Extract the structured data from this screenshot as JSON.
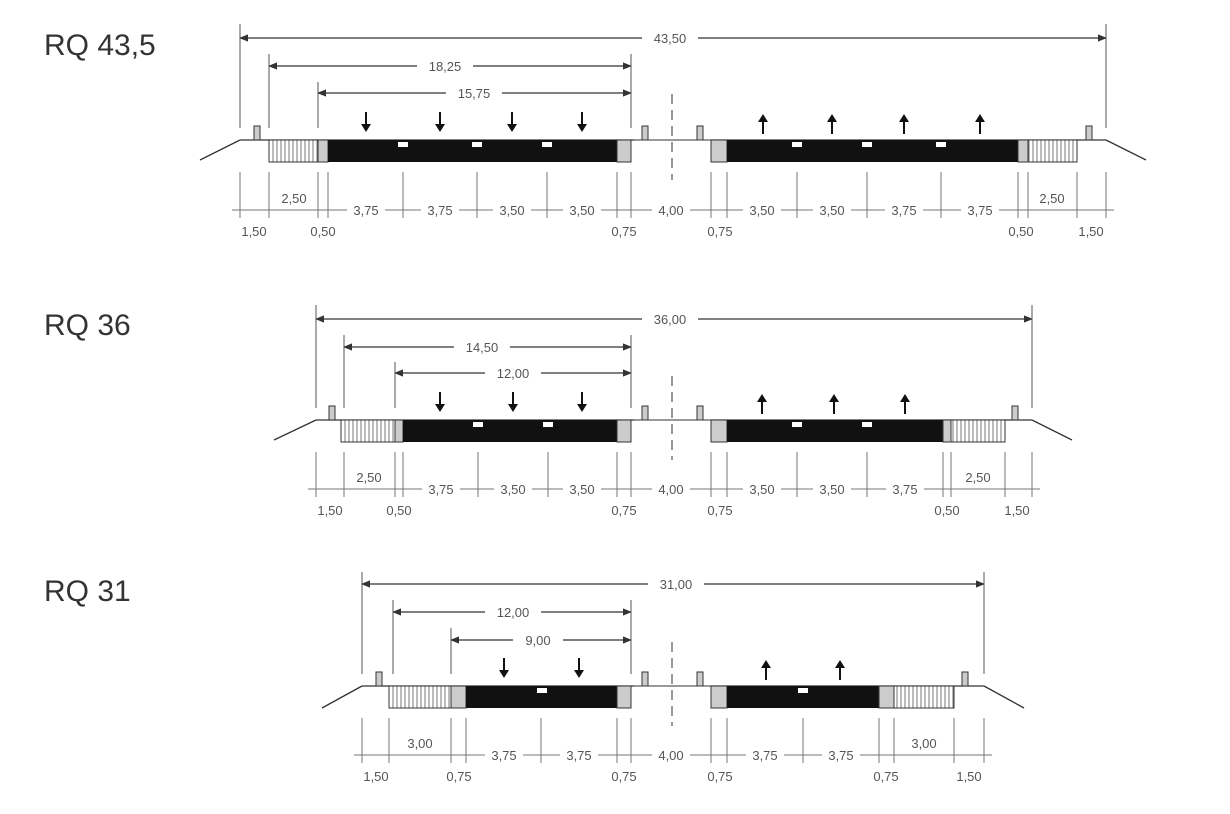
{
  "sections": [
    {
      "title": "RQ 43,5",
      "overall": "43,50",
      "carriageway_total": "18,25",
      "traffic_lanes_total": "15,75",
      "lane_arrows": 4,
      "bottom_upper_left": [
        "2,50",
        "3,75",
        "3,75",
        "3,50",
        "3,50"
      ],
      "median": "4,00",
      "bottom_upper_right": [
        "3,50",
        "3,50",
        "3,75",
        "3,75",
        "2,50"
      ],
      "bottom_lower_left": [
        "1,50",
        "0,50",
        "0,75"
      ],
      "bottom_lower_right": [
        "0,75",
        "0,50",
        "1,50"
      ]
    },
    {
      "title": "RQ 36",
      "overall": "36,00",
      "carriageway_total": "14,50",
      "traffic_lanes_total": "12,00",
      "lane_arrows": 3,
      "bottom_upper_left": [
        "2,50",
        "3,75",
        "3,50",
        "3,50"
      ],
      "median": "4,00",
      "bottom_upper_right": [
        "3,50",
        "3,50",
        "3,75",
        "2,50"
      ],
      "bottom_lower_left": [
        "1,50",
        "0,50",
        "0,75"
      ],
      "bottom_lower_right": [
        "0,75",
        "0,50",
        "1,50"
      ]
    },
    {
      "title": "RQ 31",
      "overall": "31,00",
      "carriageway_total": "12,00",
      "traffic_lanes_total": "9,00",
      "lane_arrows": 2,
      "bottom_upper_left": [
        "3,00",
        "3,75",
        "3,75"
      ],
      "median": "4,00",
      "bottom_upper_right": [
        "3,75",
        "3,75",
        "3,00"
      ],
      "bottom_lower_left": [
        "1,50",
        "0,75",
        "0,75"
      ],
      "bottom_lower_right": [
        "0,75",
        "0,75",
        "1,50"
      ]
    }
  ]
}
